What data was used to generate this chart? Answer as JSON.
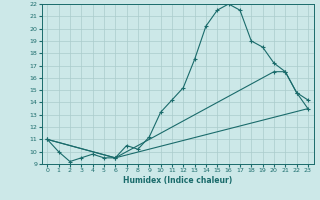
{
  "xlabel": "Humidex (Indice chaleur)",
  "xlim": [
    -0.5,
    23.5
  ],
  "ylim": [
    9,
    22
  ],
  "xticks": [
    0,
    1,
    2,
    3,
    4,
    5,
    6,
    7,
    8,
    9,
    10,
    11,
    12,
    13,
    14,
    15,
    16,
    17,
    18,
    19,
    20,
    21,
    22,
    23
  ],
  "yticks": [
    9,
    10,
    11,
    12,
    13,
    14,
    15,
    16,
    17,
    18,
    19,
    20,
    21,
    22
  ],
  "background_color": "#cce8e8",
  "line_color": "#1a6b6b",
  "grid_color": "#aacccc",
  "line1_x": [
    0,
    1,
    2,
    3,
    4,
    5,
    6,
    7,
    8,
    9,
    10,
    11,
    12,
    13,
    14,
    15,
    16,
    17,
    18,
    19,
    20,
    21,
    22,
    23
  ],
  "line1_y": [
    11,
    10,
    9.2,
    9.5,
    9.8,
    9.5,
    9.5,
    10.5,
    10.2,
    11.2,
    13.2,
    14.2,
    15.2,
    17.5,
    20.2,
    21.5,
    22.0,
    21.5,
    19.0,
    18.5,
    17.2,
    16.5,
    14.8,
    14.2
  ],
  "line2_x": [
    0,
    6,
    20,
    21,
    22,
    23
  ],
  "line2_y": [
    11,
    9.5,
    16.5,
    16.5,
    14.8,
    13.5
  ],
  "line3_x": [
    0,
    6,
    23
  ],
  "line3_y": [
    11,
    9.5,
    13.5
  ]
}
